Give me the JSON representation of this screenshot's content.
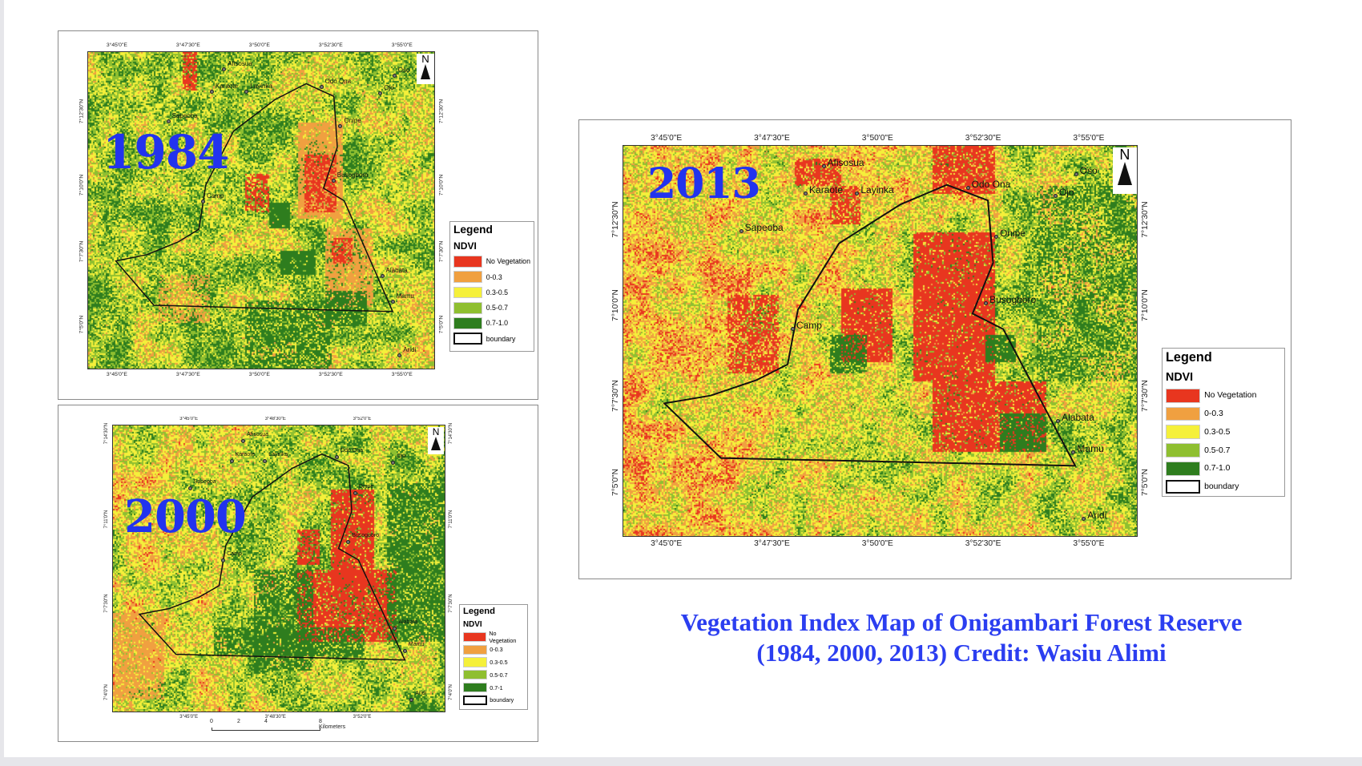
{
  "caption": {
    "line1": "Vegetation Index Map of Onigambari Forest Reserve",
    "line2": "(1984, 2000, 2013) Credit: Wasiu Alimi"
  },
  "colors": {
    "no_vegetation": "#e8361f",
    "ndvi_0_0.3": "#f0a040",
    "ndvi_0.3_0.5": "#f5f03a",
    "ndvi_0.5_0.7": "#8fbf30",
    "ndvi_0.7_1.0": "#2e7d1e",
    "caption": "#2b3ef0"
  },
  "maps": {
    "m1984": {
      "year": "1984",
      "north": "N",
      "x_ticks": [
        "3°45'0\"E",
        "3°47'30\"E",
        "3°50'0\"E",
        "3°52'30\"E",
        "3°55'0\"E"
      ],
      "y_ticks": [
        "7°12'30\"N",
        "7°10'0\"N",
        "7°7'30\"N",
        "7°5'0\"N"
      ],
      "places": [
        "Afisosua",
        "Karaote",
        "Layinka",
        "Sapeoba",
        "Odo Ona",
        "Oso",
        "Ojo",
        "Onipe",
        "Busogboro",
        "Camp",
        "Alabata",
        "Mamu",
        "Aridi"
      ],
      "legend": {
        "title": "Legend",
        "subtitle": "NDVI",
        "items": [
          "No Vegetation",
          "0-0.3",
          "0.3-0.5",
          "0.5-0.7",
          "0.7-1.0",
          "boundary"
        ]
      }
    },
    "m2000": {
      "year": "2000",
      "north": "N",
      "x_ticks": [
        "3°45'0\"E",
        "3°48'30\"E",
        "3°52'0\"E"
      ],
      "y_ticks": [
        "7°14'30\"N",
        "7°11'0\"N",
        "7°7'30\"N",
        "7°4'0\"N"
      ],
      "places": [
        "Afisosua",
        "Karaote",
        "Layinka",
        "Sapeoba",
        "Odo Ona",
        "Ojo",
        "Onipe",
        "Busogboro",
        "Camp",
        "Alabata",
        "Mamu",
        "Aridi"
      ],
      "legend": {
        "title": "Legend",
        "subtitle": "NDVI",
        "items": [
          "No Vegetation",
          "0-0.3",
          "0.3-0.5",
          "0.5-0.7",
          "0.7-1",
          "boundary"
        ]
      },
      "scale": {
        "labels": [
          "0",
          "2",
          "4",
          "8 Kilometers"
        ]
      }
    },
    "m2013": {
      "year": "2013",
      "north": "N",
      "x_ticks": [
        "3°45'0\"E",
        "3°47'30\"E",
        "3°50'0\"E",
        "3°52'30\"E",
        "3°55'0\"E"
      ],
      "y_ticks": [
        "7°12'30\"N",
        "7°10'0\"N",
        "7°7'30\"N",
        "7°5'0\"N"
      ],
      "places": [
        "Afisosua",
        "Karaote",
        "Layinka",
        "Sapeoba",
        "Odo Ona",
        "Oso",
        "Ojo",
        "Onipe",
        "Busogboro",
        "Camp",
        "Alabata",
        "Mamu",
        "Aridi"
      ],
      "legend": {
        "title": "Legend",
        "subtitle": "NDVI",
        "items": [
          "No Vegetation",
          "0-0.3",
          "0.3-0.5",
          "0.5-0.7",
          "0.7-1.0",
          "boundary"
        ]
      }
    }
  }
}
